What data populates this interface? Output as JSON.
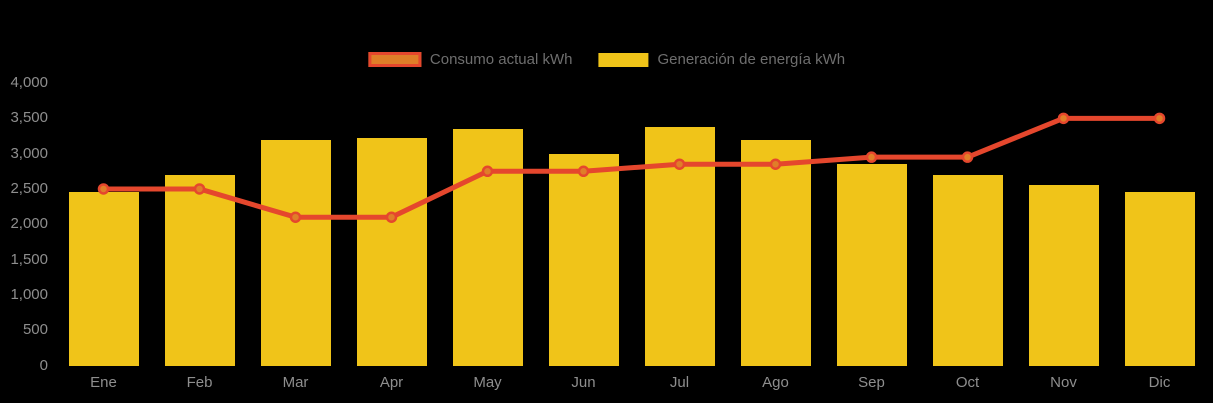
{
  "chart_data": {
    "type": "bar",
    "title": "",
    "xlabel": "",
    "ylabel": "",
    "categories": [
      "Ene",
      "Feb",
      "Mar",
      "Apr",
      "May",
      "Jun",
      "Jul",
      "Ago",
      "Sep",
      "Oct",
      "Nov",
      "Dic"
    ],
    "series": [
      {
        "name": "Generación de energía kWh",
        "kind": "bar",
        "color": "#F0C419",
        "values": [
          2450,
          2700,
          3200,
          3225,
          3350,
          3000,
          3375,
          3200,
          2850,
          2700,
          2550,
          2450
        ]
      },
      {
        "name": "Consumo actual kWh",
        "kind": "line",
        "color": "#E5472D",
        "marker_fill": "#E07E28",
        "values": [
          2500,
          2500,
          2100,
          2100,
          2750,
          2750,
          2850,
          2850,
          2950,
          2950,
          3500,
          3500
        ]
      }
    ],
    "ylim": [
      0,
      4000
    ],
    "y_ticks": [
      "0",
      "500",
      "1,000",
      "1,500",
      "2,000",
      "2,500",
      "3,000",
      "3,500",
      "4,000"
    ],
    "grid": false,
    "legend_position": "top-center",
    "background": "#000000"
  },
  "legend": {
    "consumo": {
      "label": "Consumo actual kWh",
      "swatch_fill": "#E07E28",
      "swatch_border": "#E5472D"
    },
    "generacion": {
      "label": "Generación de energía kWh",
      "swatch_fill": "#F0C419"
    }
  }
}
